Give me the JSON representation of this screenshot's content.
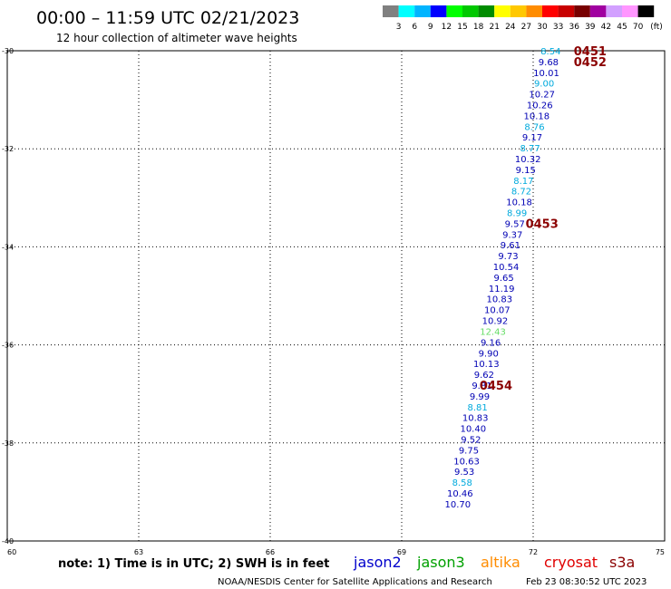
{
  "chart_data": {
    "type": "scatter",
    "title": "00:00 – 11:59 UTC 02/21/2023",
    "subtitle": "12 hour collection of altimeter wave heights",
    "xlim": [
      60,
      75
    ],
    "ylim": [
      -40,
      -30
    ],
    "x_ticks": [
      "60",
      "63",
      "66",
      "69",
      "72",
      "75"
    ],
    "y_ticks": [
      "-30",
      "-32",
      "-34",
      "-36",
      "-38",
      "-40"
    ],
    "grid": true,
    "legend": {
      "values": [
        "3",
        "6",
        "9",
        "12",
        "15",
        "18",
        "21",
        "24",
        "27",
        "30",
        "33",
        "36",
        "39",
        "42",
        "45",
        "70"
      ],
      "unit": "(ft)",
      "colors": [
        "#808080",
        "#00ffff",
        "#00b4ff",
        "#0000ff",
        "#00ff00",
        "#00c800",
        "#008c00",
        "#ffff00",
        "#ffc800",
        "#ff8c00",
        "#ff0000",
        "#c80000",
        "#780000",
        "#a000a0",
        "#d2a0ff",
        "#ff96ff",
        "#000000"
      ]
    },
    "points": [
      {
        "x": 72.4,
        "y": -30.0,
        "label": "8.54",
        "color": "#00aadd"
      },
      {
        "x": 72.35,
        "y": -30.22,
        "label": "9.68",
        "color": "#0000b4"
      },
      {
        "x": 72.3,
        "y": -30.44,
        "label": "10.01",
        "color": "#0000b4"
      },
      {
        "x": 72.25,
        "y": -30.66,
        "label": "9.00",
        "color": "#00aadd"
      },
      {
        "x": 72.2,
        "y": -30.88,
        "label": "10.27",
        "color": "#0000b4"
      },
      {
        "x": 72.15,
        "y": -31.1,
        "label": "10.26",
        "color": "#0000b4"
      },
      {
        "x": 72.08,
        "y": -31.32,
        "label": "10.18",
        "color": "#0000b4"
      },
      {
        "x": 72.03,
        "y": -31.54,
        "label": "8.76",
        "color": "#00aadd"
      },
      {
        "x": 71.98,
        "y": -31.76,
        "label": "9.17",
        "color": "#0000b4"
      },
      {
        "x": 71.93,
        "y": -31.98,
        "label": "8.77",
        "color": "#00aadd"
      },
      {
        "x": 71.88,
        "y": -32.2,
        "label": "10.32",
        "color": "#0000b4"
      },
      {
        "x": 71.83,
        "y": -32.42,
        "label": "9.15",
        "color": "#0000b4"
      },
      {
        "x": 71.78,
        "y": -32.64,
        "label": "8.17",
        "color": "#00aadd"
      },
      {
        "x": 71.73,
        "y": -32.86,
        "label": "8.72",
        "color": "#00aadd"
      },
      {
        "x": 71.68,
        "y": -33.08,
        "label": "10.18",
        "color": "#0000b4"
      },
      {
        "x": 71.63,
        "y": -33.3,
        "label": "8.99",
        "color": "#00aadd"
      },
      {
        "x": 71.58,
        "y": -33.52,
        "label": "9.57",
        "color": "#0000b4"
      },
      {
        "x": 71.53,
        "y": -33.74,
        "label": "9.37",
        "color": "#0000b4"
      },
      {
        "x": 71.48,
        "y": -33.96,
        "label": "9.61",
        "color": "#0000b4"
      },
      {
        "x": 71.43,
        "y": -34.18,
        "label": "9.73",
        "color": "#0000b4"
      },
      {
        "x": 71.38,
        "y": -34.4,
        "label": "10.54",
        "color": "#0000b4"
      },
      {
        "x": 71.33,
        "y": -34.62,
        "label": "9.65",
        "color": "#0000b4"
      },
      {
        "x": 71.28,
        "y": -34.84,
        "label": "11.19",
        "color": "#0000b4"
      },
      {
        "x": 71.23,
        "y": -35.06,
        "label": "10.83",
        "color": "#0000b4"
      },
      {
        "x": 71.18,
        "y": -35.28,
        "label": "10.07",
        "color": "#0000b4"
      },
      {
        "x": 71.13,
        "y": -35.5,
        "label": "10.92",
        "color": "#0000b4"
      },
      {
        "x": 71.08,
        "y": -35.72,
        "label": "12.43",
        "color": "#66dd66"
      },
      {
        "x": 71.03,
        "y": -35.94,
        "label": "9.16",
        "color": "#0000b4"
      },
      {
        "x": 70.98,
        "y": -36.16,
        "label": "9.90",
        "color": "#0000b4"
      },
      {
        "x": 70.93,
        "y": -36.38,
        "label": "10.13",
        "color": "#0000b4"
      },
      {
        "x": 70.88,
        "y": -36.6,
        "label": "9.62",
        "color": "#0000b4"
      },
      {
        "x": 70.83,
        "y": -36.82,
        "label": "9.81",
        "color": "#0000b4"
      },
      {
        "x": 70.78,
        "y": -37.04,
        "label": "9.99",
        "color": "#0000b4"
      },
      {
        "x": 70.73,
        "y": -37.26,
        "label": "8.81",
        "color": "#00aadd"
      },
      {
        "x": 70.68,
        "y": -37.48,
        "label": "10.83",
        "color": "#0000b4"
      },
      {
        "x": 70.63,
        "y": -37.7,
        "label": "10.40",
        "color": "#0000b4"
      },
      {
        "x": 70.58,
        "y": -37.92,
        "label": "9.52",
        "color": "#0000b4"
      },
      {
        "x": 70.53,
        "y": -38.14,
        "label": "9.75",
        "color": "#0000b4"
      },
      {
        "x": 70.48,
        "y": -38.36,
        "label": "10.63",
        "color": "#0000b4"
      },
      {
        "x": 70.43,
        "y": -38.58,
        "label": "9.53",
        "color": "#0000b4"
      },
      {
        "x": 70.38,
        "y": -38.8,
        "label": "8.58",
        "color": "#00aadd"
      },
      {
        "x": 70.33,
        "y": -39.02,
        "label": "10.46",
        "color": "#0000b4"
      },
      {
        "x": 70.28,
        "y": -39.24,
        "label": "10.70",
        "color": "#0000b4"
      }
    ],
    "time_labels": [
      {
        "x": 73.3,
        "y": -30.0,
        "label": "0451"
      },
      {
        "x": 73.3,
        "y": -30.22,
        "label": "0452"
      },
      {
        "x": 72.2,
        "y": -33.52,
        "label": "0453"
      },
      {
        "x": 71.15,
        "y": -36.82,
        "label": "0454"
      }
    ],
    "time_label_color": "#8b0000"
  },
  "footer": {
    "note": "note:  1) Time is in UTC;  2) SWH is in feet",
    "satellites": [
      {
        "name": "jason2",
        "color": "#0000cc"
      },
      {
        "name": "jason3",
        "color": "#00a000"
      },
      {
        "name": "altika",
        "color": "#ff8c00"
      },
      {
        "name": "cryosat",
        "color": "#e00000"
      },
      {
        "name": "s3a",
        "color": "#8b0000"
      }
    ],
    "credit": "NOAA/NESDIS Center for Satellite Applications and Research",
    "timestamp": "Feb 23 08:30:52 UTC 2023"
  }
}
